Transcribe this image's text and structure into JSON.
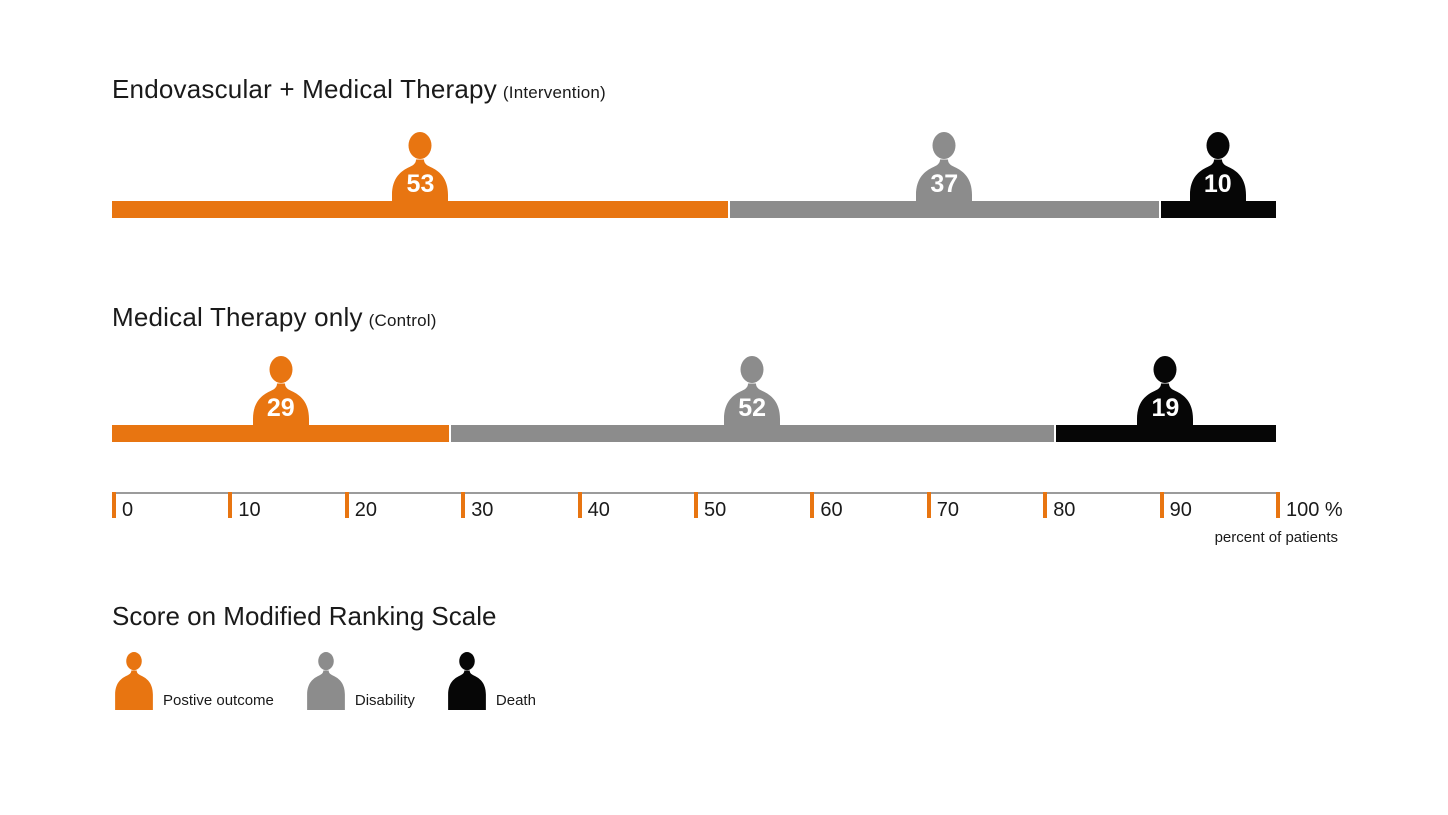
{
  "colors": {
    "positive": "#E87511",
    "disability": "#8C8C8C",
    "death": "#060606",
    "axisline": "#9B9B9B"
  },
  "rows": [
    {
      "title": "Endovascular + Medical Therapy",
      "subtitle": "(Intervention)",
      "segments": [
        {
          "outcome": "Postive outcome",
          "value": 53
        },
        {
          "outcome": "Disability",
          "value": 37
        },
        {
          "outcome": "Death",
          "value": 10
        }
      ]
    },
    {
      "title": "Medical Therapy only",
      "subtitle": "(Control)",
      "segments": [
        {
          "outcome": "Postive outcome",
          "value": 29
        },
        {
          "outcome": "Disability",
          "value": 52
        },
        {
          "outcome": "Death",
          "value": 19
        }
      ]
    }
  ],
  "axis": {
    "tick_values": [
      0,
      10,
      20,
      30,
      40,
      50,
      60,
      70,
      80,
      90,
      100
    ],
    "tick_labels": [
      "0",
      "10",
      "20",
      "30",
      "40",
      "50",
      "60",
      "70",
      "80",
      "90",
      "100 %"
    ],
    "caption": "percent of patients"
  },
  "legend": {
    "title": "Score on Modified Ranking Scale",
    "items": [
      {
        "label": "Postive outcome"
      },
      {
        "label": "Disability"
      },
      {
        "label": "Death"
      }
    ]
  },
  "chart_data": {
    "type": "bar",
    "orientation": "horizontal-stacked",
    "categories": [
      "Endovascular + Medical Therapy (Intervention)",
      "Medical Therapy only (Control)"
    ],
    "series": [
      {
        "name": "Postive outcome",
        "values": [
          53,
          29
        ],
        "color": "#E87511"
      },
      {
        "name": "Disability",
        "values": [
          37,
          52
        ],
        "color": "#8C8C8C"
      },
      {
        "name": "Death",
        "values": [
          10,
          19
        ],
        "color": "#060606"
      }
    ],
    "xlabel": "percent of patients",
    "xlim": [
      0,
      100
    ],
    "x_ticks": [
      0,
      10,
      20,
      30,
      40,
      50,
      60,
      70,
      80,
      90,
      100
    ],
    "unit": "percent of patients",
    "legend_title": "Score on Modified Ranking Scale",
    "legend_position": "bottom-left",
    "grid": false
  }
}
